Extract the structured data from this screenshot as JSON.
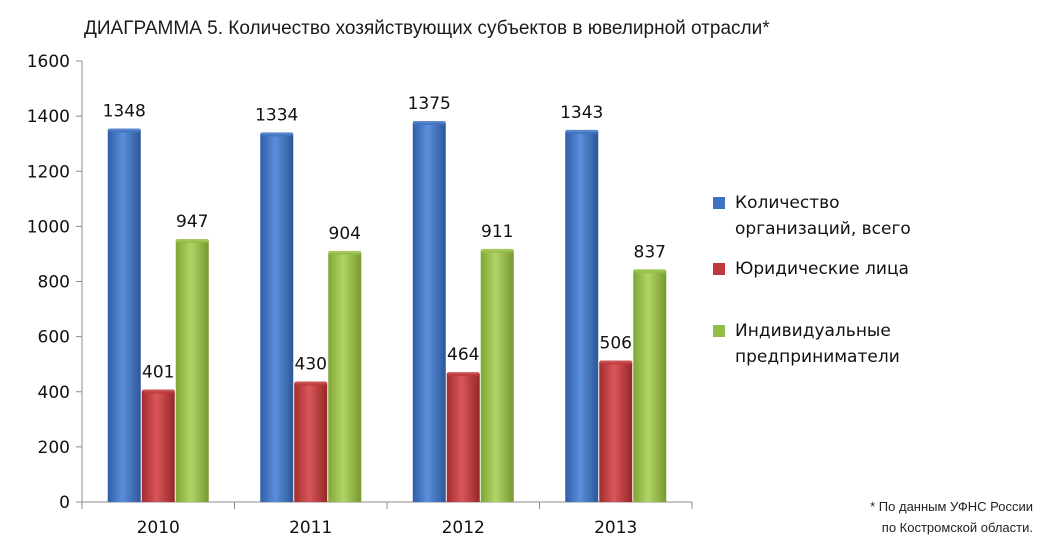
{
  "title": "ДИАГРАММА 5. Количество хозяйствующих субъектов в ювелирной отрасли*",
  "footnote": {
    "line1": "* По данным УФНС России",
    "line2": "по Костромской области."
  },
  "legend": [
    {
      "label_line1": "Количество",
      "label_line2": "организаций, всего"
    },
    {
      "label_line1": "Юридические лица",
      "label_line2": ""
    },
    {
      "label_line1": "Индивидуальные",
      "label_line2": "предприниматели"
    }
  ],
  "chart_data": {
    "type": "bar",
    "title": "ДИАГРАММА 5. Количество хозяйствующих субъектов в ювелирной отрасли*",
    "categories": [
      "2010",
      "2011",
      "2012",
      "2013"
    ],
    "series": [
      {
        "name": "Количество организаций, всего",
        "values": [
          1348,
          1334,
          1375,
          1343
        ],
        "color": "#3f73c2"
      },
      {
        "name": "Юридические лица",
        "values": [
          401,
          430,
          464,
          506
        ],
        "color": "#c0383a"
      },
      {
        "name": "Индивидуальные предприниматели",
        "values": [
          947,
          904,
          911,
          837
        ],
        "color": "#95bd45"
      }
    ],
    "ylim": [
      0,
      1600
    ],
    "yticks": [
      0,
      200,
      400,
      600,
      800,
      1000,
      1200,
      1400,
      1600
    ],
    "grid": false,
    "legend_position": "right"
  }
}
